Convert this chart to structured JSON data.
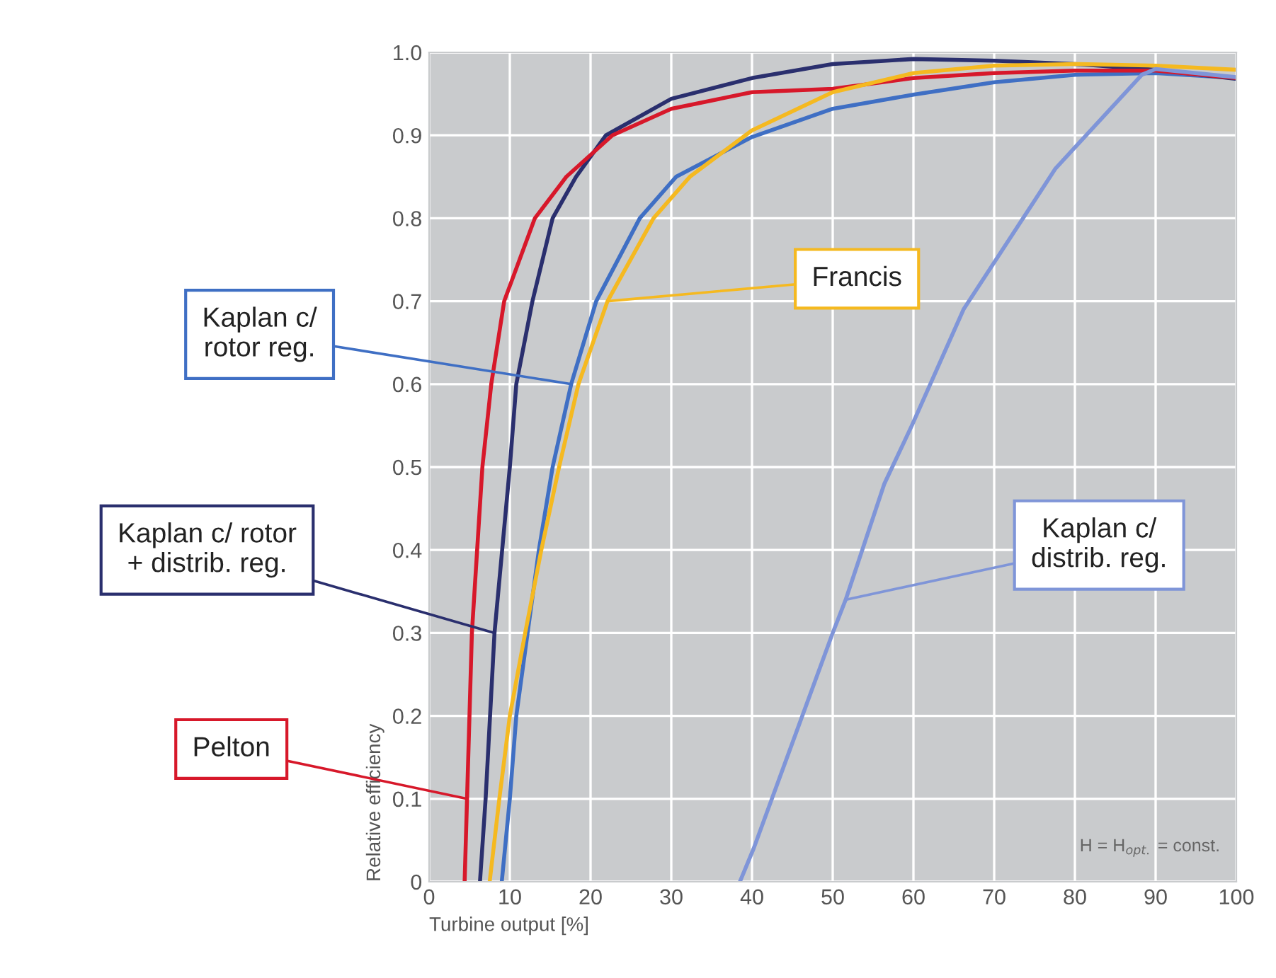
{
  "chart_data": {
    "type": "line",
    "xlabel": "Turbine output [%]",
    "ylabel": "Relative efficiency",
    "xlim": [
      0,
      100
    ],
    "ylim": [
      0,
      1.0
    ],
    "xticks": [
      0,
      10,
      20,
      30,
      40,
      50,
      60,
      70,
      80,
      90,
      100
    ],
    "yticks": [
      0,
      0.1,
      0.2,
      0.3,
      0.4,
      0.5,
      0.6,
      0.7,
      0.8,
      0.9,
      {
        "value": 1.0,
        "label": "1.0"
      }
    ],
    "grid": true,
    "marker": "none",
    "line_style": "solid",
    "annotations": [
      "H = H$_{opt.}$ = const."
    ],
    "series": [
      {
        "name": "Kaplan c/\nrotor reg.",
        "color": "#3f6fc4",
        "x": [
          9.0,
          10.0,
          10.8,
          12.2,
          13.6,
          15.3,
          17.6,
          20.7,
          26.1,
          30.6,
          40,
          50,
          60,
          70,
          80,
          90,
          100
        ],
        "values": [
          0,
          0.1,
          0.2,
          0.3,
          0.4,
          0.5,
          0.6,
          0.7,
          0.8,
          0.85,
          0.898,
          0.932,
          0.949,
          0.964,
          0.973,
          0.975,
          0.969
        ]
      },
      {
        "name": "Kaplan c/ rotor\n+ distrib. reg.",
        "color": "#2a2f6e",
        "x": [
          6.3,
          7.0,
          8.1,
          10.0,
          10.8,
          12.8,
          15.3,
          18.2,
          21.9,
          30,
          40,
          50,
          60,
          70,
          80,
          90,
          100
        ],
        "values": [
          0,
          0.1,
          0.3,
          0.5,
          0.6,
          0.7,
          0.8,
          0.85,
          0.9,
          0.944,
          0.969,
          0.986,
          0.992,
          0.99,
          0.986,
          0.979,
          0.968
        ]
      },
      {
        "name": "Pelton",
        "color": "#d7182a",
        "x": [
          4.4,
          4.7,
          5.3,
          6.6,
          7.7,
          9.3,
          13.1,
          17,
          22.7,
          30,
          40,
          50,
          60,
          70,
          80,
          90,
          100
        ],
        "values": [
          0,
          0.1,
          0.3,
          0.5,
          0.6,
          0.7,
          0.8,
          0.85,
          0.9,
          0.932,
          0.952,
          0.956,
          0.969,
          0.975,
          0.978,
          0.978,
          0.969
        ]
      },
      {
        "name": "Francis",
        "color": "#f5b920",
        "x": [
          7.5,
          8.7,
          10.0,
          11.9,
          13.9,
          16.1,
          18.5,
          22.1,
          27.8,
          32.3,
          40,
          50,
          60,
          70,
          80,
          90,
          100
        ],
        "values": [
          0,
          0.1,
          0.2,
          0.3,
          0.4,
          0.5,
          0.6,
          0.7,
          0.8,
          0.85,
          0.906,
          0.952,
          0.975,
          0.984,
          0.986,
          0.984,
          0.979
        ]
      },
      {
        "name": "Kaplan c/\ndistrib. reg.",
        "color": "#7f95d8",
        "x": [
          38.5,
          40.2,
          50,
          51.6,
          56.4,
          59.8,
          66.2,
          77.6,
          88.3,
          90,
          100
        ],
        "values": [
          0,
          0.04,
          0.3,
          0.34,
          0.48,
          0.55,
          0.69,
          0.86,
          0.973,
          0.98,
          0.97
        ]
      }
    ]
  }
}
